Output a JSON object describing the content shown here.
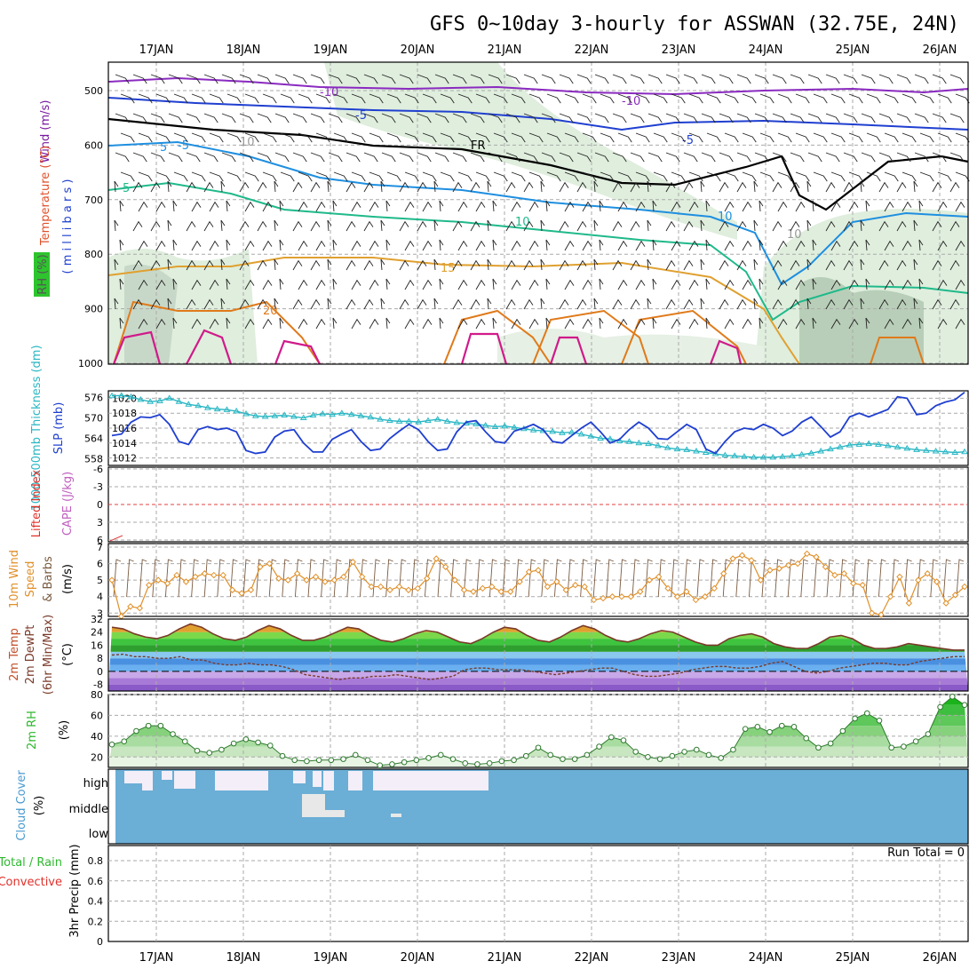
{
  "title": "GFS 0~10day 3-hourly for ASSWAN (32.75E, 24N)",
  "dates": [
    "17JAN",
    "18JAN",
    "19JAN",
    "20JAN",
    "21JAN",
    "22JAN",
    "23JAN",
    "24JAN",
    "25JAN",
    "26JAN"
  ],
  "colors": {
    "temp_minus10": "#8a2ac0",
    "temp_minus5": "#1f3fd0",
    "temp_5": "#1e8fe0",
    "temp_10": "#1fb98a",
    "temp_15": "#e0a030",
    "temp_20": "#e07a1a",
    "temp_25": "#d01a8a",
    "freezing": "#000000",
    "slp": "#1f3fd0",
    "thickness": "#2ab7c4",
    "wind10m": "#e0902a",
    "barb": "#7a5a40",
    "rh2m": "#2eb82e",
    "cloud": "#6baed6",
    "cloud_clear": "#f3eef7"
  },
  "panels": {
    "upper": {
      "ylabel_rh": "RH (%)",
      "ylabel_temp": "Temperature (°C)",
      "ylabel_wind": "Wind (m/s)",
      "ylabel_p": "( m i l l i b a r s )",
      "pressure_ticks": [
        "500",
        "600",
        "700",
        "800",
        "900",
        "1000"
      ],
      "contour_labels": [
        "-10",
        "-10",
        "-5",
        "-5",
        "-5",
        "5",
        "10",
        "10",
        "5",
        "15",
        "20",
        "FR",
        "10",
        "10"
      ]
    },
    "slp": {
      "ylabel_thk": "1000-500mb Thickness (dm)",
      "ylabel_slp": "SLP (mb)",
      "thk_ticks": [
        "576",
        "570",
        "564",
        "558"
      ],
      "slp_ticks": [
        "1020",
        "1018",
        "1016",
        "1014",
        "1012"
      ]
    },
    "li": {
      "ylabel_li": "Lifted Index",
      "ylabel_cape": "CAPE (J/kg)",
      "ticks": [
        "-6",
        "-3",
        "0",
        "3",
        "6"
      ]
    },
    "wind": {
      "ylabel_a": "10m Wind",
      "ylabel_b": "Speed",
      "ylabel_c": "& Barbs",
      "ylabel_unit": "(m/s)",
      "ticks": [
        "7",
        "6",
        "5",
        "4",
        "3"
      ]
    },
    "temp": {
      "ylabel_a": "2m Temp",
      "ylabel_b": "2m DewPt",
      "ylabel_c": "(6hr Min/Max)",
      "ylabel_unit": "(°C)",
      "ticks": [
        "32",
        "24",
        "16",
        "8",
        "0",
        "-8"
      ]
    },
    "rh": {
      "ylabel": "2m RH",
      "ylabel_unit": "(%)",
      "ticks": [
        "80",
        "60",
        "40",
        "20"
      ]
    },
    "cloud": {
      "ylabel": "Cloud Cover",
      "ylabel_unit": "(%)",
      "levels": [
        "high",
        "middle",
        "low"
      ]
    },
    "precip": {
      "ylabel_a": "Total / Rain",
      "ylabel_b": "Convective",
      "ylabel_c": "3hr Precip (mm)",
      "ticks": [
        "0.8",
        "0.6",
        "0.4",
        "0.2",
        "0"
      ],
      "run_total": "Run Total = 0"
    }
  },
  "chart_data": [
    {
      "type": "line",
      "name": "SLP",
      "x_unit": "forecast hour (3-hourly, 0 = 16JAN ~12Z)",
      "ylabel": "SLP (mb)",
      "ylim": [
        1011,
        1021
      ],
      "values": [
        1015,
        1015.2,
        1016.8,
        1017.5,
        1017.4,
        1017.8,
        1016.5,
        1014.2,
        1013.8,
        1015.8,
        1016.2,
        1015.8,
        1016.0,
        1015.5,
        1013.0,
        1012.6,
        1012.8,
        1014.8,
        1015.6,
        1015.8,
        1014.0,
        1012.8,
        1012.8,
        1014.5,
        1015.2,
        1015.8,
        1014.2,
        1013.0,
        1013.2,
        1014.6,
        1015.6,
        1016.5,
        1015.8,
        1014.2,
        1013.0,
        1013.2,
        1015.5,
        1016.8,
        1017.0,
        1015.5,
        1014.2,
        1014.0,
        1015.6,
        1016.0,
        1016.5,
        1015.8,
        1014.2,
        1014.0,
        1015.0,
        1016.0,
        1016.8,
        1015.5,
        1014.0,
        1014.5,
        1015.8,
        1016.8,
        1016.0,
        1014.6,
        1014.5,
        1015.5,
        1016.5,
        1015.8,
        1013.2,
        1012.6,
        1014.2,
        1015.5,
        1016.0,
        1015.8,
        1016.5,
        1016.0,
        1015.0,
        1015.6,
        1016.8,
        1017.5,
        1016.2,
        1014.8,
        1015.5,
        1017.5,
        1018.0,
        1017.5,
        1018.0,
        1018.5,
        1020.2,
        1020.0,
        1017.8,
        1018.0,
        1019.0,
        1019.5,
        1019.8,
        1020.8
      ]
    },
    {
      "type": "line",
      "name": "1000-500mb Thickness",
      "ylabel": "Thickness (dm)",
      "ylim": [
        556,
        578
      ],
      "values": [
        576.5,
        576.6,
        576.2,
        575.4,
        574.8,
        575.0,
        575.8,
        574.8,
        574.0,
        573.6,
        573.0,
        572.6,
        572.4,
        572.0,
        571.2,
        570.6,
        570.4,
        570.6,
        570.8,
        570.4,
        570.0,
        570.8,
        571.2,
        571.0,
        571.4,
        571.0,
        570.6,
        570.2,
        569.6,
        569.2,
        569.0,
        569.0,
        568.8,
        569.2,
        569.6,
        569.0,
        568.6,
        568.4,
        568.2,
        567.8,
        567.4,
        567.6,
        567.2,
        566.8,
        566.4,
        566.2,
        566.0,
        565.6,
        565.8,
        565.2,
        564.6,
        564.0,
        563.8,
        563.2,
        563.0,
        562.6,
        562.4,
        561.8,
        561.2,
        560.8,
        560.6,
        560.2,
        559.8,
        559.4,
        559.0,
        558.8,
        558.6,
        558.4,
        558.4,
        558.4,
        558.6,
        558.8,
        559.2,
        559.6,
        560.2,
        560.8,
        561.4,
        562.0,
        562.2,
        562.4,
        562.2,
        561.8,
        561.4,
        561.0,
        560.6,
        560.4,
        560.2,
        560.0,
        559.8,
        560.0
      ]
    },
    {
      "type": "line",
      "name": "10m Wind Speed",
      "ylabel": "(m/s)",
      "ylim": [
        2.8,
        7
      ],
      "values": [
        5.0,
        2.8,
        3.4,
        3.3,
        4.7,
        5.0,
        4.8,
        5.3,
        4.9,
        5.2,
        5.4,
        5.3,
        5.3,
        4.4,
        4.2,
        4.4,
        5.8,
        6.0,
        5.1,
        5.0,
        5.4,
        5.0,
        5.2,
        4.9,
        5.0,
        5.2,
        6.1,
        5.2,
        4.6,
        4.6,
        4.4,
        4.6,
        4.4,
        4.5,
        5.1,
        6.3,
        5.8,
        5.0,
        4.4,
        4.3,
        4.5,
        4.6,
        4.3,
        4.3,
        4.9,
        5.5,
        5.6,
        4.6,
        4.9,
        4.4,
        4.7,
        4.6,
        3.8,
        3.9,
        4.0,
        4.0,
        4.0,
        4.3,
        5.0,
        5.2,
        4.5,
        4.0,
        4.3,
        3.8,
        4.0,
        4.5,
        5.4,
        6.3,
        6.5,
        6.2,
        5.0,
        5.6,
        5.7,
        5.9,
        6.0,
        6.6,
        6.4,
        5.8,
        5.3,
        5.4,
        4.8,
        4.7,
        3.0,
        2.9,
        4.0,
        5.2,
        3.6,
        5.0,
        5.4,
        4.9,
        3.6,
        4.1,
        4.6
      ]
    },
    {
      "type": "area",
      "name": "2m Temp",
      "ylabel": "(°C)",
      "ylim": [
        -12,
        32
      ],
      "values": [
        27,
        26,
        23,
        21,
        20,
        22,
        26,
        29,
        27,
        23,
        20,
        19,
        21,
        25,
        28,
        26,
        22,
        19,
        19,
        21,
        24,
        27,
        26,
        22,
        19,
        18,
        20,
        23,
        25,
        24,
        21,
        18,
        17,
        20,
        24,
        27,
        26,
        22,
        19,
        18,
        21,
        25,
        28,
        26,
        22,
        19,
        18,
        20,
        23,
        25,
        24,
        21,
        18,
        16,
        16,
        20,
        22,
        23,
        21,
        17,
        15,
        14,
        14,
        17,
        21,
        22,
        20,
        16,
        14,
        14,
        15,
        17,
        16,
        15,
        14,
        13,
        13
      ]
    },
    {
      "type": "line",
      "name": "2m DewPt",
      "ylabel": "(°C)",
      "ylim": [
        -12,
        32
      ],
      "values": [
        10,
        10.5,
        9,
        9,
        8,
        8,
        9,
        7,
        7,
        5,
        4,
        4,
        5,
        4,
        4,
        3,
        1,
        -2,
        -3,
        -4,
        -5,
        -4,
        -4,
        -3,
        -3,
        -2,
        -3,
        -4,
        -5,
        -4,
        -3,
        1,
        2,
        2,
        1,
        1,
        1,
        0,
        -1,
        -2,
        -1,
        0,
        1,
        2,
        2,
        0,
        -2,
        -3,
        -3,
        -2,
        -1,
        1,
        2,
        3,
        3,
        2,
        2,
        3,
        5,
        6,
        3,
        0,
        -1,
        0,
        2,
        3,
        4,
        5,
        5,
        4,
        4,
        6,
        7,
        8,
        9,
        9
      ]
    },
    {
      "type": "area",
      "name": "2m RH",
      "ylabel": "(%)",
      "ylim": [
        10,
        80
      ],
      "values": [
        32,
        35,
        45,
        50,
        50,
        42,
        35,
        26,
        24,
        27,
        33,
        37,
        34,
        31,
        21,
        17,
        16,
        17,
        17,
        18,
        22,
        17,
        12,
        13,
        15,
        17,
        19,
        22,
        18,
        14,
        13,
        14,
        16,
        17,
        21,
        29,
        22,
        18,
        18,
        22,
        30,
        39,
        36,
        25,
        20,
        18,
        21,
        25,
        27,
        22,
        19,
        27,
        47,
        49,
        44,
        50,
        49,
        38,
        29,
        33,
        45,
        57,
        62,
        55,
        29,
        30,
        35,
        42,
        68,
        78,
        70
      ]
    }
  ]
}
